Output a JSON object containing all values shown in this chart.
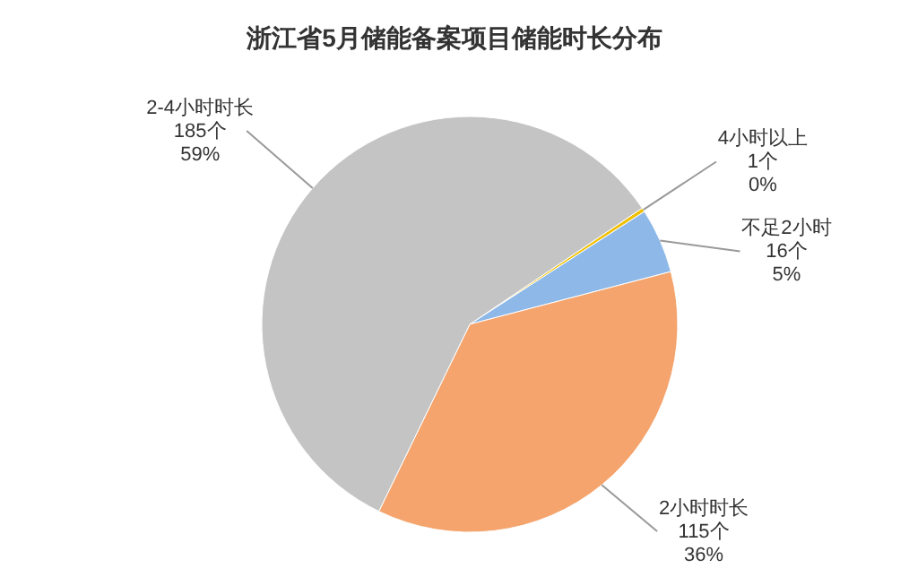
{
  "chart_data": {
    "type": "pie",
    "title": "浙江省5月储能备案项目储能时长分布",
    "categories": [
      "4小时以上",
      "不足2小时",
      "2小时时长",
      "2-4小时时长"
    ],
    "values": [
      1,
      16,
      115,
      185
    ],
    "value_labels": [
      "1个\n0%",
      "16个\n5%",
      "115个\n36%",
      "185个\n59%"
    ],
    "colors": [
      "#f0c000",
      "#8db8e8",
      "#f4a46c",
      "#c4c4c4"
    ],
    "legend": false
  }
}
